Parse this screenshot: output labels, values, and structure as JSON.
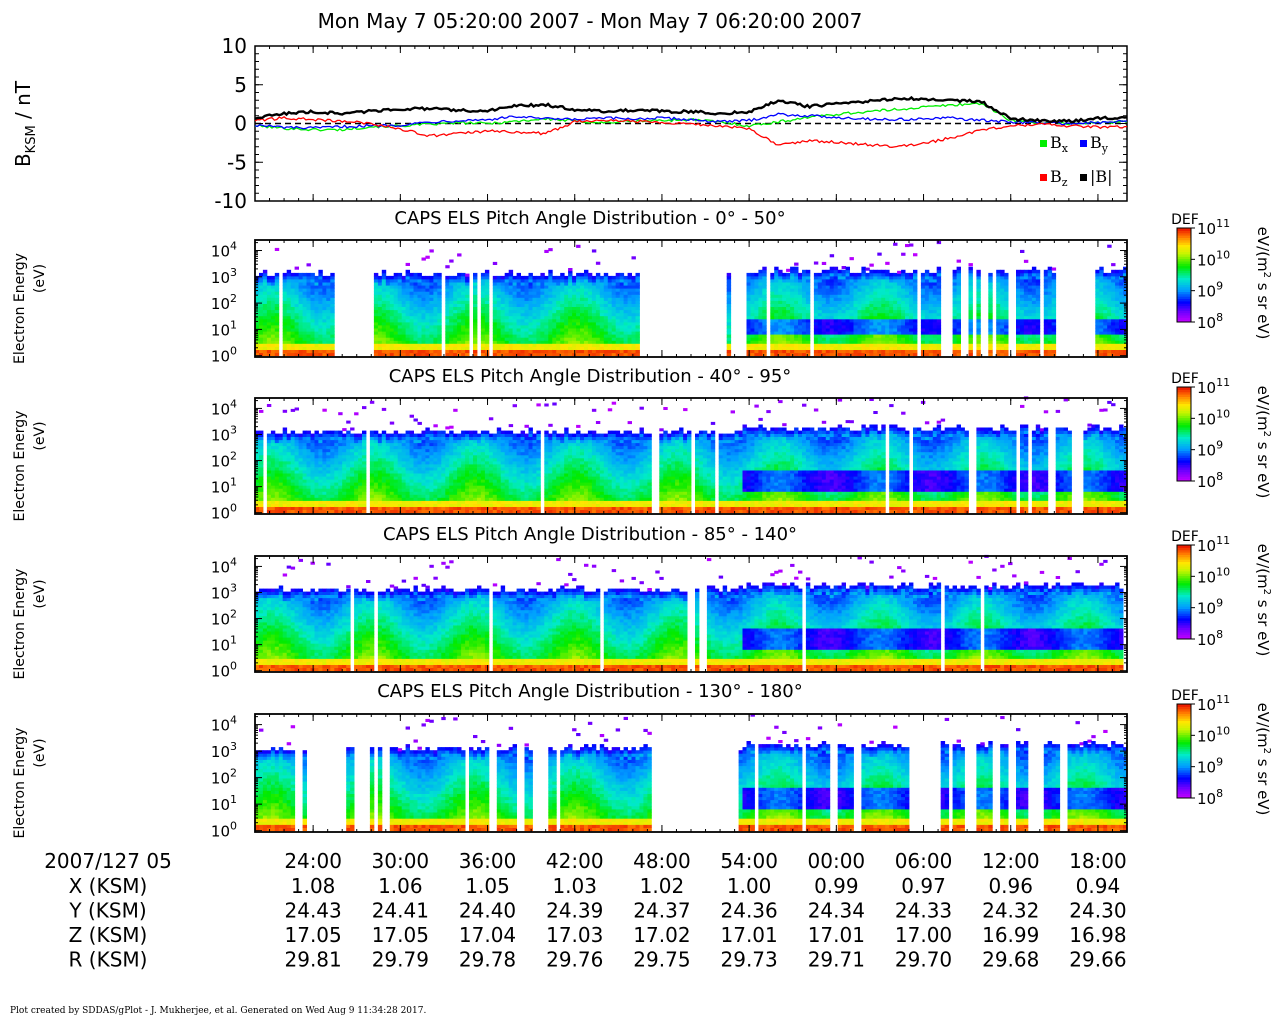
{
  "title": "Mon May 7 05:20:00 2007 - Mon May 7 06:20:00 2007",
  "footer": "Plot created by SDDAS/gPlot - J. Mukherjee, et al.  Generated on Wed Aug 9 11:34:28 2017.",
  "colors": {
    "bx": "#00ee00",
    "by": "#0000ff",
    "bz": "#ff0000",
    "bmag": "#000000"
  },
  "chart_data": [
    {
      "type": "line",
      "ylabel": "B",
      "ylabel_sub": "KSM",
      "ylabel_unit": " / nT",
      "ylim": [
        -10,
        10
      ],
      "yticks": [
        10,
        5,
        0,
        -5,
        -10
      ],
      "xlim_min": [
        20,
        80
      ],
      "zero_line": "dashed",
      "legend_position": "bottom-right",
      "x_min": [
        20,
        22,
        24,
        26,
        28,
        30,
        32,
        34,
        36,
        38,
        40,
        42,
        44,
        46,
        48,
        50,
        52,
        54,
        56,
        58,
        60,
        62,
        64,
        66,
        68,
        70,
        72,
        74,
        76,
        78,
        80
      ],
      "series": [
        {
          "key": "bx",
          "name": "B",
          "sub": "x",
          "color_key": "bx",
          "values": [
            -0.3,
            -0.6,
            -0.8,
            -0.8,
            -0.4,
            -0.3,
            -0.1,
            0.1,
            0.0,
            0.3,
            0.6,
            0.3,
            0.1,
            0.3,
            0.4,
            0.5,
            0.2,
            -0.3,
            0.2,
            0.8,
            1.2,
            1.5,
            1.8,
            2.1,
            2.4,
            2.6,
            0.4,
            0.1,
            0.0,
            0.1,
            0.2
          ]
        },
        {
          "key": "by",
          "name": "B",
          "sub": "y",
          "color_key": "by",
          "values": [
            -0.2,
            -0.5,
            -0.6,
            -0.4,
            -0.3,
            -0.2,
            0.2,
            0.4,
            0.5,
            0.9,
            0.6,
            0.5,
            0.7,
            0.6,
            0.7,
            0.5,
            0.2,
            0.4,
            1.2,
            1.0,
            0.8,
            0.6,
            0.5,
            0.6,
            0.7,
            0.4,
            0.2,
            0.1,
            0.0,
            0.1,
            0.3
          ]
        },
        {
          "key": "bz",
          "name": "B",
          "sub": "z",
          "color_key": "bz",
          "values": [
            0.4,
            0.7,
            0.5,
            0.3,
            0.0,
            -0.7,
            -1.6,
            -1.3,
            -1.0,
            -1.1,
            -1.3,
            0.2,
            0.5,
            0.3,
            0.2,
            -0.1,
            -0.3,
            -0.7,
            -2.8,
            -2.2,
            -2.4,
            -2.7,
            -3.0,
            -2.6,
            -1.8,
            -0.8,
            -0.3,
            -0.1,
            -0.3,
            -0.5,
            -0.4
          ]
        },
        {
          "key": "bmag",
          "name": "|B|",
          "sub": "",
          "color_key": "bmag",
          "values": [
            0.7,
            1.3,
            1.5,
            1.3,
            1.6,
            1.9,
            1.9,
            1.7,
            1.6,
            2.3,
            2.4,
            1.8,
            1.6,
            1.7,
            1.6,
            1.5,
            1.3,
            1.5,
            3.0,
            2.2,
            2.5,
            2.8,
            3.2,
            3.2,
            3.0,
            2.8,
            0.6,
            0.4,
            0.3,
            0.7,
            0.8
          ]
        }
      ]
    },
    {
      "type": "heatmap",
      "title": "CAPS ELS Pitch Angle Distribution - 0° - 50°",
      "ylabel": "Electron Energy",
      "ylabel2": "(eV)",
      "ylim_log10": [
        -0.05,
        4.4
      ],
      "yticks_exp": [
        0,
        1,
        2,
        3,
        4
      ],
      "colorbar": {
        "label": "DEF",
        "unit": "eV/(m² s sr eV)",
        "ticks_exp": [
          8,
          9,
          10,
          11
        ]
      },
      "gaps_min": [
        [
          25.5,
          28.3
        ],
        [
          35.2,
          35.6
        ],
        [
          36.0,
          36.4
        ],
        [
          46.4,
          46.9
        ],
        [
          47.0,
          52.5
        ],
        [
          52.7,
          53.7
        ],
        [
          67.6,
          67.9
        ],
        [
          68.6,
          69.1
        ],
        [
          69.8,
          70.4
        ],
        [
          70.8,
          71.0
        ],
        [
          72.2,
          72.5
        ],
        [
          73.9,
          74.2
        ],
        [
          75.0,
          77.7
        ]
      ],
      "seed": 11
    },
    {
      "type": "heatmap",
      "title": "CAPS ELS Pitch Angle Distribution - 40° - 95°",
      "ylabel": "Electron Energy",
      "ylabel2": "(eV)",
      "ylim_log10": [
        -0.05,
        4.4
      ],
      "yticks_exp": [
        0,
        1,
        2,
        3,
        4
      ],
      "colorbar": {
        "label": "DEF",
        "unit": "eV/(m² s sr eV)",
        "ticks_exp": [
          8,
          9,
          10,
          11
        ]
      },
      "gaps_min": [],
      "seed": 23
    },
    {
      "type": "heatmap",
      "title": "CAPS ELS Pitch Angle Distribution - 85° - 140°",
      "ylabel": "Electron Energy",
      "ylabel2": "(eV)",
      "ylim_log10": [
        -0.05,
        4.4
      ],
      "yticks_exp": [
        0,
        1,
        2,
        3,
        4
      ],
      "colorbar": {
        "label": "DEF",
        "unit": "eV/(m² s sr eV)",
        "ticks_exp": [
          8,
          9,
          10,
          11
        ]
      },
      "gaps_min": [
        [
          49.6,
          50.3
        ],
        [
          50.6,
          51.0
        ]
      ],
      "seed": 37
    },
    {
      "type": "heatmap",
      "title": "CAPS ELS Pitch Angle Distribution - 130° - 180°",
      "ylabel": "Electron Energy",
      "ylabel2": "(eV)",
      "ylim_log10": [
        -0.05,
        4.4
      ],
      "yticks_exp": [
        0,
        1,
        2,
        3,
        4
      ],
      "colorbar": {
        "label": "DEF",
        "unit": "eV/(m² s sr eV)",
        "ticks_exp": [
          8,
          9,
          10,
          11
        ]
      },
      "gaps_min": [
        [
          22.7,
          23.2
        ],
        [
          23.5,
          24.8
        ],
        [
          25.0,
          26.2
        ],
        [
          26.7,
          28.0
        ],
        [
          28.8,
          29.4
        ],
        [
          36.2,
          36.6
        ],
        [
          38.0,
          38.6
        ],
        [
          39.2,
          40.3
        ],
        [
          47.2,
          53.2
        ],
        [
          59.6,
          60.0
        ],
        [
          61.2,
          61.6
        ],
        [
          65.1,
          67.3
        ],
        [
          67.8,
          68.0
        ],
        [
          68.9,
          69.7
        ],
        [
          70.6,
          71.4
        ],
        [
          72.0,
          72.3
        ],
        [
          73.1,
          74.3
        ],
        [
          75.3,
          75.8
        ]
      ],
      "seed": 53
    }
  ],
  "x_axis": {
    "xlim_min": [
      20,
      80
    ],
    "header": "2007/127 05",
    "ticks_min": [
      24,
      30,
      36,
      42,
      48,
      54,
      60,
      66,
      72,
      78
    ],
    "labels": [
      "24:00",
      "30:00",
      "36:00",
      "42:00",
      "48:00",
      "54:00",
      "00:00",
      "06:00",
      "12:00",
      "18:00"
    ],
    "rows": [
      {
        "label": "X (KSM)",
        "values": [
          "1.08",
          "1.06",
          "1.05",
          "1.03",
          "1.02",
          "1.00",
          "0.99",
          "0.97",
          "0.96",
          "0.94"
        ]
      },
      {
        "label": "Y (KSM)",
        "values": [
          "24.43",
          "24.41",
          "24.40",
          "24.39",
          "24.37",
          "24.36",
          "24.34",
          "24.33",
          "24.32",
          "24.30"
        ]
      },
      {
        "label": "Z (KSM)",
        "values": [
          "17.05",
          "17.05",
          "17.04",
          "17.03",
          "17.02",
          "17.01",
          "17.01",
          "17.00",
          "16.99",
          "16.98"
        ]
      },
      {
        "label": "R (KSM)",
        "values": [
          "29.81",
          "29.79",
          "29.78",
          "29.76",
          "29.75",
          "29.73",
          "29.71",
          "29.70",
          "29.68",
          "29.66"
        ]
      }
    ]
  }
}
